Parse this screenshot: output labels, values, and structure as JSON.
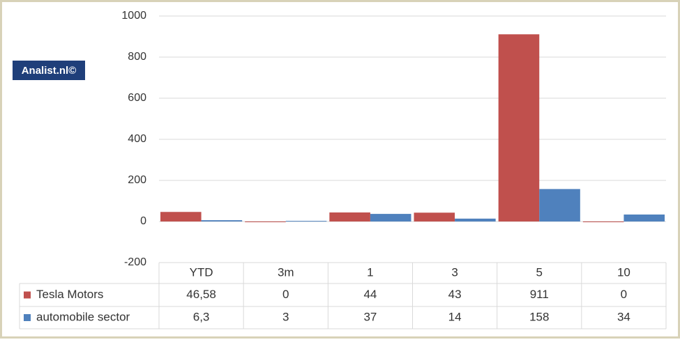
{
  "chart_data": {
    "type": "bar",
    "watermark": "Analist.nl©",
    "categories": [
      "YTD",
      "3m",
      "1",
      "3",
      "5",
      "10"
    ],
    "series": [
      {
        "name": "Tesla Motors",
        "color": "#c0504d",
        "values": [
          46.58,
          0,
          44,
          43,
          911,
          0
        ],
        "value_labels": [
          "46,58",
          "0",
          "44",
          "43",
          "911",
          "0"
        ]
      },
      {
        "name": "automobile sector",
        "color": "#4f81bd",
        "values": [
          6.3,
          3,
          37,
          14,
          158,
          34
        ],
        "value_labels": [
          "6,3",
          "3",
          "37",
          "14",
          "158",
          "34"
        ]
      }
    ],
    "ylim": [
      -200,
      1000
    ],
    "yticks": [
      -200,
      0,
      200,
      400,
      600,
      800,
      1000
    ],
    "grid": true,
    "data_table": true
  }
}
